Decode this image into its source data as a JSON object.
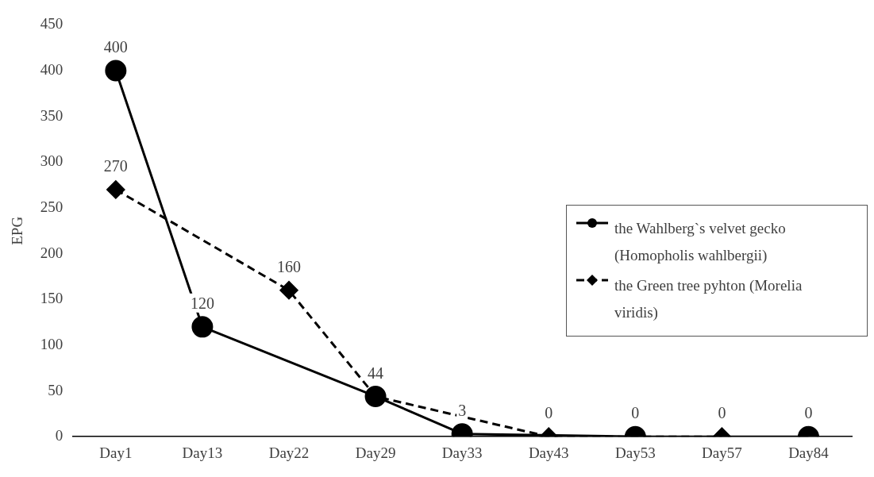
{
  "chart_data": {
    "type": "line",
    "ylabel": "EPG",
    "categories": [
      "Day1",
      "Day13",
      "Day22",
      "Day29",
      "Day33",
      "Day43",
      "Day53",
      "Day57",
      "Day84"
    ],
    "ylim": [
      0,
      450
    ],
    "yticks": [
      0,
      50,
      100,
      150,
      200,
      250,
      300,
      350,
      400,
      450
    ],
    "grid": false,
    "legend": "right",
    "series": [
      {
        "name": "the Wahlberg`s velvet gecko (Homopholis wahlbergii)",
        "color": "#000000",
        "marker": "circle",
        "line_style": "solid",
        "values": [
          400,
          120,
          null,
          44,
          3,
          null,
          0,
          null,
          0
        ],
        "value_labels": [
          "400",
          "120",
          null,
          null,
          "3",
          null,
          "0",
          null,
          "0"
        ]
      },
      {
        "name": "the Green tree pyhton (Morelia viridis)",
        "color": "#000000",
        "marker": "diamond",
        "line_style": "dashed",
        "values": [
          270,
          null,
          160,
          44,
          null,
          0,
          null,
          0,
          null
        ],
        "value_labels": [
          "270",
          null,
          "160",
          "44",
          null,
          "0",
          null,
          "0",
          null
        ]
      }
    ]
  }
}
